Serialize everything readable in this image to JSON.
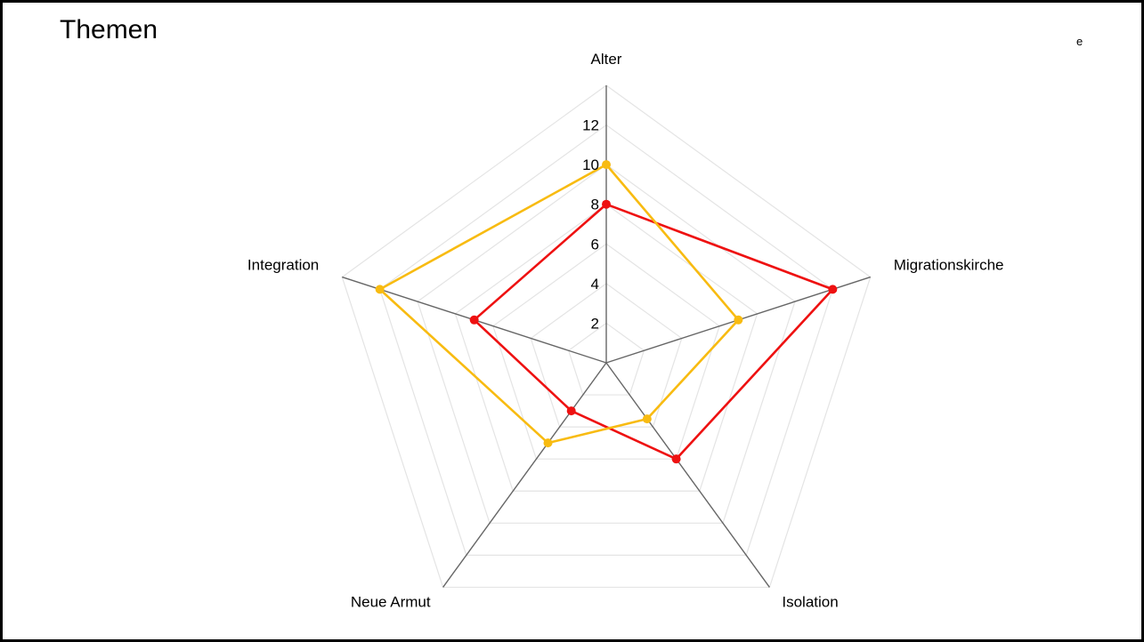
{
  "page": {
    "title": "Themen",
    "corner_mark": "e"
  },
  "chart_data": {
    "type": "radar",
    "title": "Themen",
    "categories": [
      "Alter",
      "Migrationskirche",
      "Isolation",
      "Neue Armut",
      "Integration"
    ],
    "rlim": [
      0,
      14
    ],
    "ticks": [
      2,
      4,
      6,
      8,
      10,
      12
    ],
    "grid": true,
    "legend": "none",
    "series": [
      {
        "color": "#ee1111",
        "values": [
          8,
          12,
          6,
          3,
          7
        ]
      },
      {
        "color": "#f8bb11",
        "values": [
          10,
          7,
          3.5,
          5,
          12
        ]
      }
    ]
  }
}
